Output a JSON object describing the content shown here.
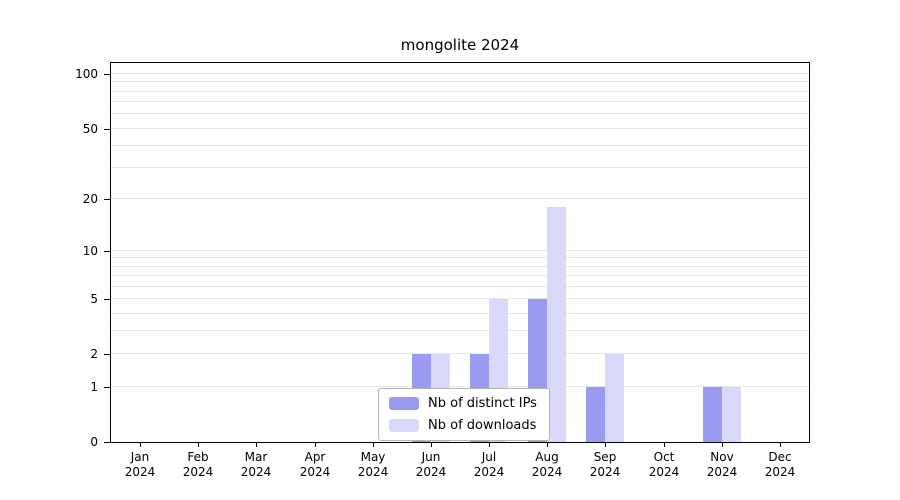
{
  "chart_data": {
    "type": "bar",
    "title": "mongolite 2024",
    "categories": [
      "Jan",
      "Feb",
      "Mar",
      "Apr",
      "May",
      "Jun",
      "Jul",
      "Aug",
      "Sep",
      "Oct",
      "Nov",
      "Dec"
    ],
    "year_label": "2024",
    "series": [
      {
        "name": "Nb of distinct IPs",
        "color": "#9a9af0",
        "values": [
          0,
          0,
          0,
          0,
          0,
          2,
          2,
          5,
          1,
          0,
          1,
          0
        ]
      },
      {
        "name": "Nb of downloads",
        "color": "#d8d8f8",
        "values": [
          0,
          0,
          0,
          0,
          0,
          2,
          5,
          18,
          2,
          0,
          1,
          0
        ]
      }
    ],
    "yticks": [
      0,
      1,
      2,
      5,
      10,
      20,
      50,
      100
    ],
    "scale": "log1p",
    "ylim": [
      0,
      115
    ],
    "grid": "horizontal-minor",
    "legend_position": "bottom-center-inside"
  }
}
